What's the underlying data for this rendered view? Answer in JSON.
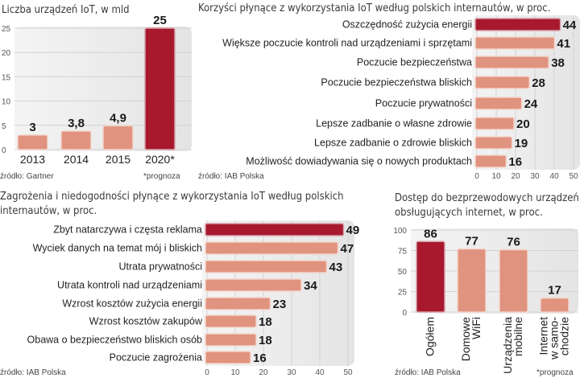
{
  "colors": {
    "highlight": "#a8192e",
    "bar": "#e0937e",
    "bar_border": "#f3d5cc",
    "panel": "#ebebeb"
  },
  "chart_data": [
    {
      "type": "bar",
      "title": "Liczba urządzeń IoT, w mld",
      "categories": [
        "2013",
        "2014",
        "2015",
        "2020*"
      ],
      "values": [
        3,
        3.8,
        4.9,
        25
      ],
      "value_labels": [
        "3",
        "3,8",
        "4,9",
        "25"
      ],
      "highlight": [
        3
      ],
      "ylim": [
        0,
        25
      ],
      "yticks": [
        "0",
        "5",
        "10",
        "15",
        "20",
        "25"
      ],
      "source": "źródło: Gartner",
      "note": "*prognoza"
    },
    {
      "type": "bar",
      "orientation": "horizontal",
      "title": "Korzyści płynące z wykorzystania IoT według polskich internautów, w proc.",
      "categories": [
        "Oszczędność zużycia energii",
        "Większe poczucie kontroli nad urządzeniami i sprzętami",
        "Poczucie bezpieczeństwa",
        "Poczucie bezpieczeństwa bliskich",
        "Poczucie prywatności",
        "Lepsze zadbanie o własne zdrowie",
        "Lepsze zadbanie o zdrowie bliskich",
        "Możliwość dowiadywania się o nowych produktach"
      ],
      "values": [
        44,
        41,
        38,
        28,
        24,
        20,
        19,
        16
      ],
      "highlight": [
        0
      ],
      "xlim": [
        0,
        50
      ],
      "xticks": [
        "0",
        "10",
        "20",
        "30",
        "40",
        "50"
      ],
      "source": "źródło: IAB Polska"
    },
    {
      "type": "bar",
      "orientation": "horizontal",
      "title": [
        "Zagrożenia i niedogodności płynące z wykorzystania IoT według polskich",
        "internautów, w proc."
      ],
      "categories": [
        "Zbyt natarczywa i częsta reklama",
        "Wyciek danych na temat mój i bliskich",
        "Utrata prywatności",
        "Utrata kontroli nad urządzeniami",
        "Wzrost kosztów zużycia energii",
        "Wzrost kosztów zakupów",
        "Obawa o bezpieczeństwo bliskich osób",
        "Poczucie zagrożenia"
      ],
      "values": [
        49,
        47,
        43,
        34,
        23,
        18,
        18,
        16
      ],
      "highlight": [
        0
      ],
      "xlim": [
        0,
        50
      ],
      "xticks": [
        "0",
        "10",
        "20",
        "30",
        "40",
        "50"
      ],
      "source": "źródło: IAB Polska"
    },
    {
      "type": "bar",
      "title": [
        "Dostęp do bezprzewodowych urządzeń",
        "obsługujących internet, w proc."
      ],
      "categories": [
        [
          "Ogółem"
        ],
        [
          "Domowe",
          "WiFi"
        ],
        [
          "Urządzenia",
          "mobilne"
        ],
        [
          "Internet",
          "w samo-",
          "chodzie"
        ]
      ],
      "values": [
        86,
        77,
        76,
        17
      ],
      "highlight": [
        0
      ],
      "ylim": [
        0,
        100
      ],
      "yticks": [
        "0",
        "25",
        "50",
        "75",
        "100"
      ],
      "source": "źródło: IAB Polska",
      "note": "*prognoza"
    }
  ]
}
